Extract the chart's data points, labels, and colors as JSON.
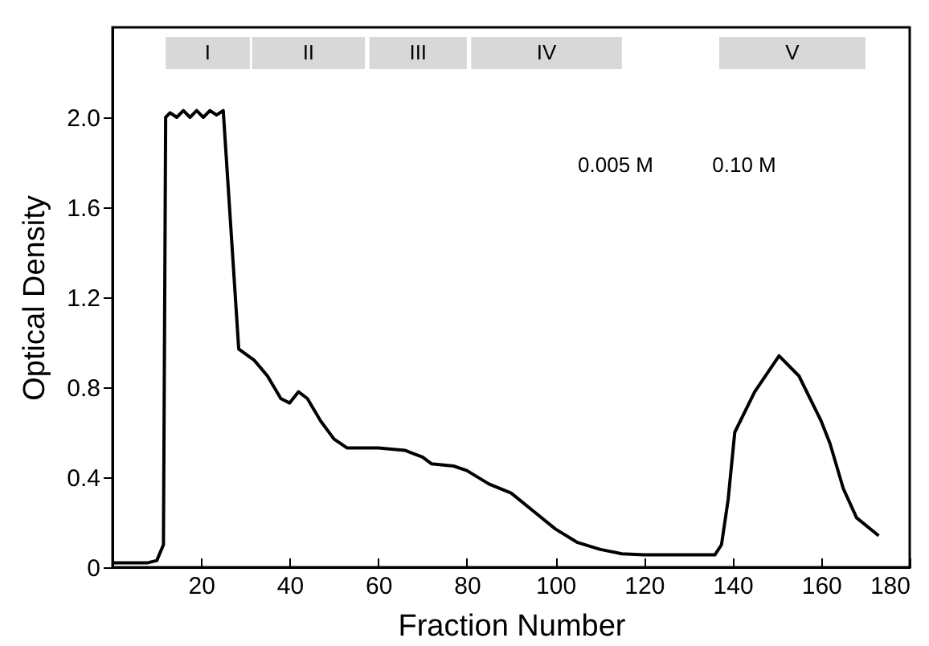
{
  "chart_data": {
    "type": "line",
    "xlabel": "Fraction Number",
    "ylabel": "Optical Density",
    "x": [
      0,
      8,
      10,
      11.5,
      12,
      13,
      14.5,
      16,
      17.5,
      19,
      20.5,
      22,
      23.5,
      25,
      28.5,
      32,
      35,
      38,
      40,
      42,
      44,
      47,
      50,
      53,
      60,
      66,
      70,
      72,
      77,
      80,
      85,
      90,
      95,
      100,
      105,
      110,
      115,
      120,
      130,
      136,
      137.5,
      139,
      140.5,
      145,
      150.5,
      155,
      160,
      162,
      165,
      168,
      173
    ],
    "series": [
      {
        "color": "#000000",
        "values": [
          0.02,
          0.02,
          0.03,
          0.1,
          2.0,
          2.02,
          2.0,
          2.03,
          2.0,
          2.03,
          2.0,
          2.03,
          2.01,
          2.03,
          0.97,
          0.92,
          0.85,
          0.75,
          0.73,
          0.78,
          0.75,
          0.65,
          0.57,
          0.53,
          0.53,
          0.52,
          0.49,
          0.46,
          0.45,
          0.43,
          0.37,
          0.33,
          0.25,
          0.17,
          0.11,
          0.08,
          0.06,
          0.055,
          0.055,
          0.055,
          0.1,
          0.3,
          0.6,
          0.78,
          0.94,
          0.85,
          0.65,
          0.55,
          0.35,
          0.22,
          0.14
        ]
      }
    ],
    "xlim": [
      0,
      180
    ],
    "xticks": [
      {
        "value": 0,
        "label": null
      },
      20,
      40,
      60,
      80,
      100,
      120,
      140,
      160,
      180
    ],
    "ylim": [
      0,
      2.4
    ],
    "yticks": [
      0,
      0.4,
      0.8,
      1.2,
      1.6,
      {
        "value": 2.0,
        "label": "2.0"
      }
    ],
    "grid": false,
    "bands": [
      {
        "axis": "x",
        "from": 12,
        "to": 31,
        "label": "I"
      },
      {
        "axis": "x",
        "from": 31.5,
        "to": 57,
        "label": "II"
      },
      {
        "axis": "x",
        "from": 58,
        "to": 80,
        "label": "III"
      },
      {
        "axis": "x",
        "from": 81,
        "to": 115,
        "label": "IV"
      },
      {
        "axis": "x",
        "from": 137,
        "to": 170,
        "label": "V"
      }
    ],
    "annotations": [
      "0.005 M",
      "0.10 M"
    ]
  }
}
